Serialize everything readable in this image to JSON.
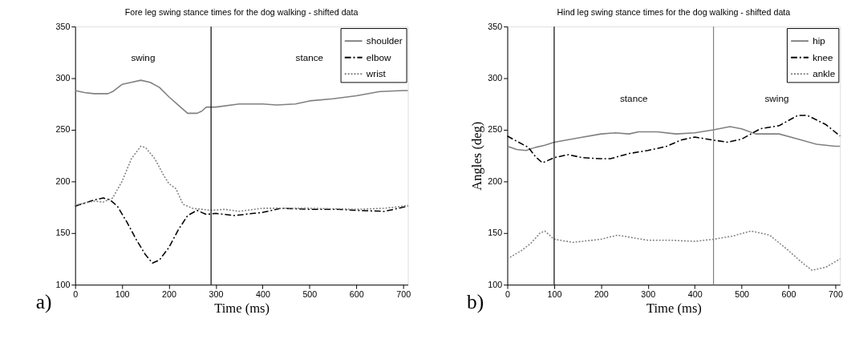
{
  "chart_data": [
    {
      "type": "line",
      "title": "Fore leg swing stance times for the dog walking - shifted data",
      "xlabel": "Time (ms)",
      "xlim": [
        0,
        710
      ],
      "xticks": [
        0,
        100,
        200,
        300,
        400,
        500,
        600,
        700
      ],
      "ylim": [
        100,
        350
      ],
      "yticks": [
        100,
        150,
        200,
        250,
        300,
        350
      ],
      "grid": false,
      "legend": "top right",
      "marker": "none",
      "series": [
        {
          "name": "shoulder",
          "color": "#808080",
          "line_style": "solid",
          "x": [
            0,
            20,
            40,
            70,
            80,
            100,
            120,
            140,
            160,
            180,
            200,
            220,
            240,
            260,
            270,
            280,
            300,
            350,
            400,
            430,
            470,
            500,
            550,
            600,
            650,
            700,
            710
          ],
          "values": [
            288,
            286,
            285,
            285,
            287,
            294,
            296,
            298,
            296,
            291,
            282,
            274,
            266,
            266,
            268,
            272,
            272,
            275,
            275,
            274,
            275,
            278,
            280,
            283,
            287,
            288,
            288
          ]
        },
        {
          "name": "elbow",
          "color": "#000000",
          "line_style": "dashdot",
          "x": [
            0,
            20,
            40,
            60,
            75,
            90,
            110,
            130,
            150,
            165,
            180,
            200,
            220,
            240,
            260,
            280,
            300,
            340,
            380,
            400,
            440,
            500,
            560,
            600,
            660,
            700,
            710
          ],
          "values": [
            176,
            179,
            182,
            184,
            182,
            176,
            161,
            144,
            129,
            121,
            124,
            136,
            153,
            167,
            172,
            168,
            169,
            167,
            169,
            170,
            174,
            173,
            173,
            172,
            171,
            175,
            176
          ]
        },
        {
          "name": "wrist",
          "color": "#808080",
          "line_style": "dotted",
          "x": [
            0,
            40,
            60,
            80,
            100,
            120,
            140,
            150,
            170,
            190,
            200,
            215,
            230,
            250,
            290,
            320,
            350,
            400,
            500,
            600,
            660,
            700,
            710
          ],
          "values": [
            177,
            181,
            180,
            184,
            200,
            222,
            234,
            233,
            222,
            205,
            198,
            193,
            178,
            174,
            172,
            173,
            171,
            174,
            174,
            173,
            174,
            176,
            177
          ]
        }
      ],
      "ref_lines": [
        {
          "axis": "x",
          "value": 290,
          "color": "#000000"
        }
      ],
      "annotations": [
        "swing",
        "stance",
        "a)"
      ]
    },
    {
      "type": "line",
      "title": "Hind leg swing stance times for the dog walking - shifted data",
      "xlabel": "Time (ms)",
      "ylabel": "Angles (deg)",
      "xlim": [
        0,
        710
      ],
      "xticks": [
        0,
        100,
        200,
        300,
        400,
        500,
        600,
        700
      ],
      "ylim": [
        100,
        350
      ],
      "yticks": [
        100,
        150,
        200,
        250,
        300,
        350
      ],
      "grid": false,
      "legend": "top right",
      "marker": "none",
      "series": [
        {
          "name": "hip",
          "color": "#808080",
          "line_style": "solid",
          "x": [
            0,
            20,
            40,
            60,
            80,
            100,
            150,
            200,
            230,
            260,
            280,
            320,
            360,
            400,
            440,
            475,
            500,
            530,
            580,
            620,
            660,
            700,
            710
          ],
          "values": [
            234,
            231,
            230,
            233,
            235,
            238,
            242,
            246,
            247,
            246,
            248,
            248,
            246,
            247,
            250,
            253,
            251,
            246,
            246,
            241,
            236,
            234,
            234
          ]
        },
        {
          "name": "knee",
          "color": "#000000",
          "line_style": "dashdot",
          "x": [
            0,
            20,
            45,
            60,
            75,
            100,
            130,
            160,
            200,
            220,
            260,
            300,
            340,
            370,
            400,
            440,
            470,
            500,
            540,
            580,
            620,
            640,
            680,
            710
          ],
          "values": [
            244,
            239,
            233,
            224,
            218,
            223,
            226,
            223,
            222,
            222,
            227,
            230,
            234,
            240,
            243,
            240,
            238,
            241,
            251,
            254,
            264,
            264,
            255,
            244
          ]
        },
        {
          "name": "ankle",
          "color": "#808080",
          "line_style": "dotted",
          "x": [
            0,
            30,
            50,
            70,
            80,
            100,
            140,
            200,
            235,
            300,
            350,
            400,
            440,
            480,
            520,
            560,
            600,
            630,
            650,
            680,
            710
          ],
          "values": [
            125,
            133,
            140,
            150,
            152,
            144,
            141,
            144,
            148,
            143,
            143,
            142,
            144,
            147,
            152,
            148,
            133,
            121,
            114,
            117,
            125
          ]
        }
      ],
      "ref_lines": [
        {
          "axis": "x",
          "value": 100,
          "color": "#000000"
        },
        {
          "axis": "x",
          "value": 440,
          "color": "#808080"
        }
      ],
      "annotations": [
        "stance",
        "swing",
        "b)"
      ]
    }
  ]
}
